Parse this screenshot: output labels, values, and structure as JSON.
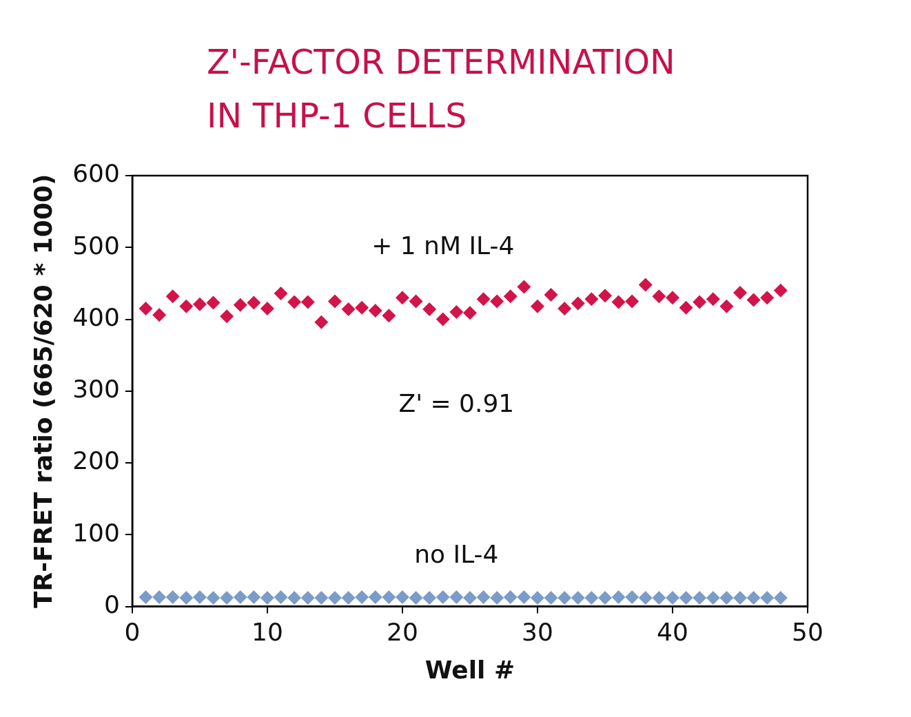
{
  "chart_data": {
    "type": "scatter",
    "title": [
      "Z'-FACTOR DETERMINATION",
      "IN THP-1 CELLS"
    ],
    "x_label": "Well #",
    "y_label": "TR-FRET ratio (665/620 * 1000)",
    "x": [
      1,
      2,
      3,
      4,
      5,
      6,
      7,
      8,
      9,
      10,
      11,
      12,
      13,
      14,
      15,
      16,
      17,
      18,
      19,
      20,
      21,
      22,
      23,
      24,
      25,
      26,
      27,
      28,
      29,
      30,
      31,
      32,
      33,
      34,
      35,
      36,
      37,
      38,
      39,
      40,
      41,
      42,
      43,
      44,
      45,
      46,
      47,
      48
    ],
    "series": [
      {
        "name": "+ 1 nM IL-4",
        "color": "#d2144a",
        "marker": "diamond",
        "values": [
          415,
          406,
          432,
          418,
          421,
          423,
          404,
          420,
          423,
          415,
          436,
          424,
          424,
          396,
          425,
          414,
          416,
          412,
          405,
          430,
          425,
          414,
          400,
          410,
          409,
          428,
          425,
          432,
          445,
          418,
          434,
          415,
          422,
          428,
          433,
          424,
          425,
          448,
          432,
          430,
          416,
          424,
          428,
          418,
          437,
          427,
          430,
          440
        ]
      },
      {
        "name": "no IL-4",
        "color": "#7b9cc8",
        "marker": "diamond",
        "values": [
          13,
          13,
          13,
          12,
          13,
          12,
          12,
          13,
          13,
          12,
          13,
          12,
          12,
          12,
          12,
          12,
          13,
          13,
          13,
          13,
          12,
          12,
          13,
          13,
          12,
          13,
          12,
          13,
          13,
          12,
          12,
          12,
          12,
          12,
          12,
          13,
          13,
          12,
          12,
          12,
          12,
          12,
          12,
          12,
          12,
          12,
          12,
          12
        ]
      }
    ],
    "annotations": [
      {
        "text": "+ 1 nM IL-4",
        "x": 23.0,
        "y": 500
      },
      {
        "text": "Z' = 0.91",
        "x": 24.0,
        "y": 280
      },
      {
        "text": "no IL-4",
        "x": 24.0,
        "y": 70
      }
    ],
    "xlim": [
      0,
      50
    ],
    "xticks": [
      0,
      10,
      20,
      30,
      40,
      50
    ],
    "ylim": [
      0,
      600
    ],
    "yticks": [
      0,
      100,
      200,
      300,
      400,
      500,
      600
    ],
    "grid": false
  }
}
